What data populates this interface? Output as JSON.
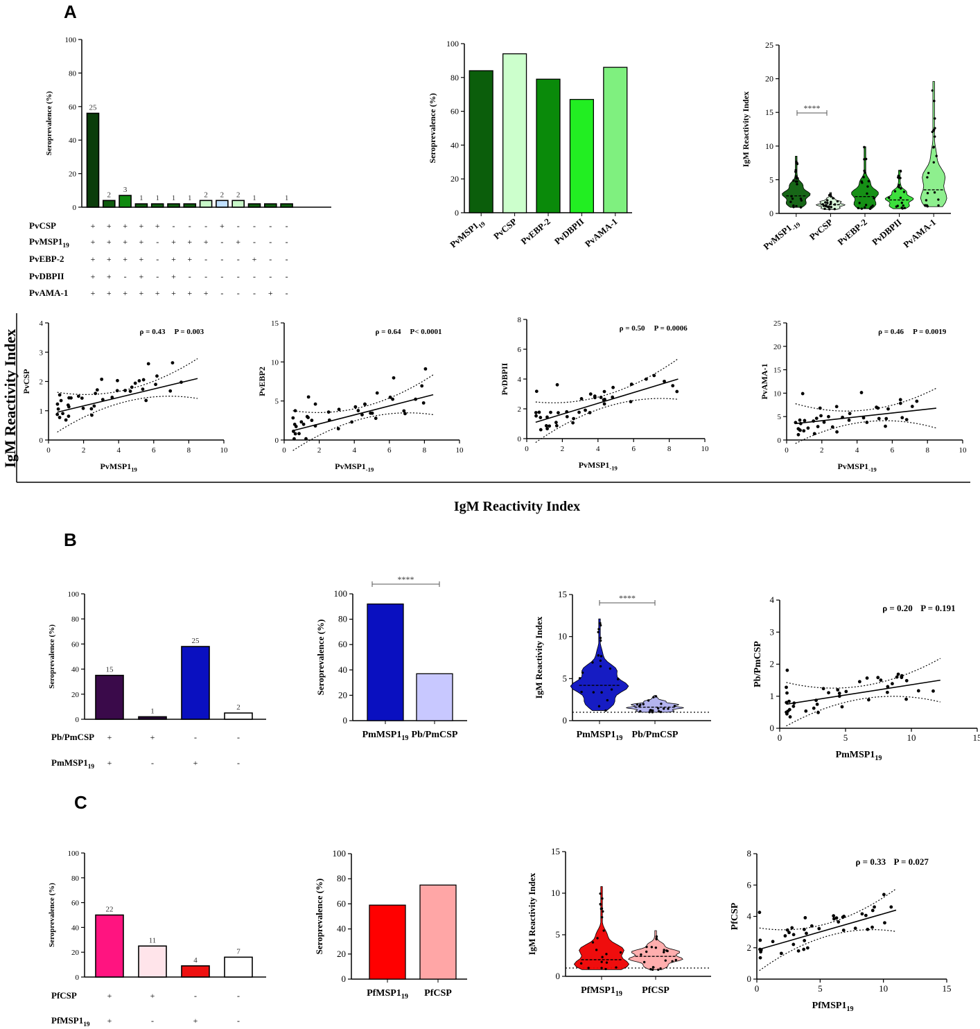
{
  "labels": {
    "panel_a": "A",
    "panel_b": "B",
    "panel_c": "C",
    "row2_ylabel": "IgM Reactivity Index",
    "row2_xlabel": "IgM Reactivity Index"
  },
  "chart_data": [
    {
      "id": "A1",
      "type": "bar",
      "title": "",
      "ylabel": "Seroprevalence (%)",
      "ylim": [
        0,
        100
      ],
      "yticks": [
        0,
        20,
        40,
        60,
        80,
        100
      ],
      "values": [
        56,
        4,
        7,
        2,
        2,
        2,
        2,
        4,
        4,
        4,
        2,
        2,
        2
      ],
      "labels": [
        "25",
        "2",
        "3",
        "1",
        "1",
        "1",
        "1",
        "2",
        "2",
        "2",
        "1",
        "",
        "1"
      ],
      "colors": [
        "#0b3d0b",
        "#0f5c0f",
        "#108a10",
        "#0f5c0f",
        "#0f5c0f",
        "#0f5c0f",
        "#0f5c0f",
        "#c8f7c8",
        "#c0e0ff",
        "#c8f7c8",
        "#0f5c0f",
        "#0f5c0f",
        "#0f5c0f"
      ],
      "combo_rows": [
        {
          "name": "PvCSP",
          "signs": [
            "+",
            "+",
            "+",
            "+",
            "+",
            "-",
            "-",
            "-",
            "+",
            "-",
            "-",
            "-",
            "-"
          ]
        },
        {
          "name": "PvMSP1",
          "sub": "19",
          "signs": [
            "+",
            "+",
            "+",
            "+",
            "-",
            "+",
            "+",
            "+",
            "-",
            "+",
            "-",
            "-",
            "-"
          ]
        },
        {
          "name": "PvEBP-2",
          "signs": [
            "+",
            "+",
            "+",
            "+",
            "-",
            "+",
            "+",
            "-",
            "-",
            "-",
            "+",
            "-",
            "-"
          ]
        },
        {
          "name": "PvDBPII",
          "signs": [
            "+",
            "+",
            "-",
            "+",
            "-",
            "+",
            "-",
            "-",
            "-",
            "-",
            "-",
            "-",
            "-"
          ]
        },
        {
          "name": "PvAMA-1",
          "signs": [
            "+",
            "+",
            "+",
            "+",
            "+",
            "+",
            "+",
            "+",
            "-",
            "-",
            "-",
            "+",
            "-"
          ]
        }
      ]
    },
    {
      "id": "A2",
      "type": "bar",
      "ylabel": "Seroprevalence (%)",
      "ylim": [
        0,
        100
      ],
      "yticks": [
        0,
        20,
        40,
        60,
        80,
        100
      ],
      "categories": [
        {
          "t": "PvMSP1",
          "s": "19"
        },
        {
          "t": "PvCSP"
        },
        {
          "t": "PvEBP-2"
        },
        {
          "t": "PvDBPII"
        },
        {
          "t": "PvAMA-1"
        }
      ],
      "values": [
        84,
        94,
        79,
        67,
        86
      ],
      "colors": [
        "#0b5e0b",
        "#ccffcc",
        "#0a8a0a",
        "#22ee22",
        "#7ff07f"
      ]
    },
    {
      "id": "A3",
      "type": "violin",
      "ylabel": "IgM Reactivity Index",
      "ylim": [
        0,
        25
      ],
      "yticks": [
        0,
        5,
        10,
        15,
        20,
        25
      ],
      "categories": [
        {
          "t": "PvMSP1",
          "s": "-19"
        },
        {
          "t": "PvCSP"
        },
        {
          "t": "PvEBP-2"
        },
        {
          "t": "PvDBPII"
        },
        {
          "t": "PvAMA-1"
        }
      ],
      "colors": [
        "#0b5e0b",
        "#d8f5d8",
        "#0a8a0a",
        "#33dd33",
        "#88ee88"
      ],
      "ranges": [
        [
          0.9,
          8.5
        ],
        [
          0.6,
          3.1
        ],
        [
          0.7,
          9.9
        ],
        [
          0.7,
          6.4
        ],
        [
          1.0,
          19.6
        ]
      ],
      "medians": [
        2.6,
        1.3,
        2.5,
        2.0,
        3.5
      ],
      "significance": "****"
    },
    {
      "id": "A4",
      "type": "scatter",
      "xlabel": "PvMSP1",
      "xsub": "19",
      "ylabel": "PvCSP",
      "xlim": [
        0,
        10
      ],
      "ylim": [
        0,
        4
      ],
      "xticks": [
        0,
        2,
        4,
        6,
        8,
        10
      ],
      "yticks": [
        0,
        1,
        2,
        3,
        4
      ],
      "rho": "ρ = 0.43",
      "p": "P = 0.003",
      "fit": [
        [
          0.5,
          0.95
        ],
        [
          8.5,
          2.1
        ]
      ]
    },
    {
      "id": "A5",
      "type": "scatter",
      "xlabel": "PvMSP1",
      "xsub": "-19",
      "ylabel": "PvEBP2",
      "xlim": [
        0,
        10
      ],
      "ylim": [
        0,
        15
      ],
      "xticks": [
        0,
        2,
        4,
        6,
        8,
        10
      ],
      "yticks": [
        0,
        5,
        10,
        15
      ],
      "rho": "ρ = 0.64",
      "p": "P< 0.0001",
      "fit": [
        [
          0.5,
          1.2
        ],
        [
          8.5,
          5.8
        ]
      ]
    },
    {
      "id": "A6",
      "type": "scatter",
      "xlabel": "PvMSP1",
      "xsub": "-19",
      "ylabel": "PvDBPII",
      "xlim": [
        0,
        10
      ],
      "ylim": [
        0,
        8
      ],
      "xticks": [
        0,
        2,
        4,
        6,
        8,
        10
      ],
      "yticks": [
        0,
        2,
        4,
        6,
        8
      ],
      "rho": "ρ = 0.50",
      "p": "P = 0.0006",
      "fit": [
        [
          0.5,
          1.1
        ],
        [
          8.5,
          4.0
        ]
      ]
    },
    {
      "id": "A7",
      "type": "scatter",
      "xlabel": "PvMSP1",
      "xsub": "-19",
      "ylabel": "PvAMA-1",
      "xlim": [
        0,
        10
      ],
      "ylim": [
        0,
        25
      ],
      "xticks": [
        0,
        2,
        4,
        6,
        8,
        10
      ],
      "yticks": [
        0,
        5,
        10,
        15,
        20,
        25
      ],
      "rho": "ρ = 0.46",
      "p": "P = 0.0019",
      "fit": [
        [
          0.5,
          3.5
        ],
        [
          8.5,
          6.8
        ]
      ]
    },
    {
      "id": "B1",
      "type": "bar",
      "ylabel": "Seroprevalence (%)",
      "ylim": [
        0,
        100
      ],
      "yticks": [
        0,
        20,
        40,
        60,
        80,
        100
      ],
      "values": [
        35,
        2,
        58,
        5
      ],
      "labels": [
        "15",
        "1",
        "25",
        "2"
      ],
      "colors": [
        "#3a0a4a",
        "#2a0a3a",
        "#0a10c0",
        "#ffffff"
      ],
      "combo_rows": [
        {
          "name": "Pb/PmCSP",
          "signs": [
            "+",
            "+",
            "-",
            "-"
          ]
        },
        {
          "name": "PmMSP1",
          "sub": "19",
          "signs": [
            "+",
            "-",
            "+",
            "-"
          ]
        }
      ]
    },
    {
      "id": "B2",
      "type": "bar",
      "ylabel": "Seroprevalence (%)",
      "ylim": [
        0,
        100
      ],
      "yticks": [
        0,
        20,
        40,
        60,
        80,
        100
      ],
      "categories": [
        {
          "t": "PmMSP1",
          "s": "19"
        },
        {
          "t": "Pb/PmCSP"
        }
      ],
      "values": [
        92,
        37
      ],
      "colors": [
        "#0a10c0",
        "#c8c8ff"
      ],
      "significance": "****"
    },
    {
      "id": "B3",
      "type": "violin",
      "ylabel": "IgM Reactivity Index",
      "ylim": [
        0,
        15
      ],
      "yticks": [
        0,
        5,
        10,
        15
      ],
      "categories": [
        {
          "t": "PmMSP1",
          "s": "19"
        },
        {
          "t": "Pb/PmCSP"
        }
      ],
      "colors": [
        "#0a10c0",
        "#b0b0ee"
      ],
      "ranges": [
        [
          1.2,
          12.1
        ],
        [
          1.0,
          3.0
        ]
      ],
      "medians": [
        4.2,
        1.6
      ],
      "significance": "****"
    },
    {
      "id": "B4",
      "type": "scatter",
      "xlabel": "PmMSP1",
      "xsub": "19",
      "ylabel": "Pb/PmCSP",
      "xlim": [
        0,
        15
      ],
      "ylim": [
        0,
        4
      ],
      "xticks": [
        0,
        5,
        10,
        15
      ],
      "yticks": [
        0,
        1,
        2,
        3,
        4
      ],
      "rho": "ρ = 0.20",
      "p": "P = 0.191",
      "fit": [
        [
          0.5,
          0.75
        ],
        [
          12.2,
          1.5
        ]
      ]
    },
    {
      "id": "C1",
      "type": "bar",
      "ylabel": "Seroprevalence (%)",
      "ylim": [
        0,
        100
      ],
      "yticks": [
        0,
        20,
        40,
        60,
        80,
        100
      ],
      "values": [
        50,
        25,
        9,
        16
      ],
      "labels": [
        "22",
        "11",
        "4",
        "7"
      ],
      "colors": [
        "#ff1480",
        "#ffe4ea",
        "#ee1111",
        "#ffffff"
      ],
      "combo_rows": [
        {
          "name": "PfCSP",
          "signs": [
            "+",
            "+",
            "-",
            "-"
          ]
        },
        {
          "name": "PfMSP1",
          "sub": "19",
          "signs": [
            "+",
            "-",
            "+",
            "-"
          ]
        }
      ]
    },
    {
      "id": "C2",
      "type": "bar",
      "ylabel": "Seroprevalence (%)",
      "ylim": [
        0,
        100
      ],
      "yticks": [
        0,
        20,
        40,
        60,
        80,
        100
      ],
      "categories": [
        {
          "t": "PfMSP1",
          "s": "19"
        },
        {
          "t": "PfCSP"
        }
      ],
      "values": [
        59,
        75
      ],
      "colors": [
        "#ff0000",
        "#ffa6a6"
      ]
    },
    {
      "id": "C3",
      "type": "violin",
      "ylabel": "IgM Reactivity Index",
      "ylim": [
        0,
        15
      ],
      "yticks": [
        0,
        5,
        10,
        15
      ],
      "categories": [
        {
          "t": "PfMSP1",
          "s": "19"
        },
        {
          "t": "PfCSP"
        }
      ],
      "colors": [
        "#ee0000",
        "#ffaaaa"
      ],
      "ranges": [
        [
          0.8,
          10.8
        ],
        [
          0.8,
          5.5
        ]
      ],
      "medians": [
        2.0,
        2.4
      ]
    },
    {
      "id": "C4",
      "type": "scatter",
      "xlabel": "PfMSP1",
      "xsub": "19",
      "ylabel": "PfCSP",
      "xlim": [
        0,
        15
      ],
      "ylim": [
        0,
        8
      ],
      "xticks": [
        0,
        5,
        10,
        15
      ],
      "yticks": [
        0,
        2,
        4,
        6,
        8
      ],
      "rho": "ρ = 0.33",
      "p": "P = 0.027",
      "fit": [
        [
          0.2,
          1.9
        ],
        [
          11.0,
          4.4
        ]
      ]
    }
  ]
}
